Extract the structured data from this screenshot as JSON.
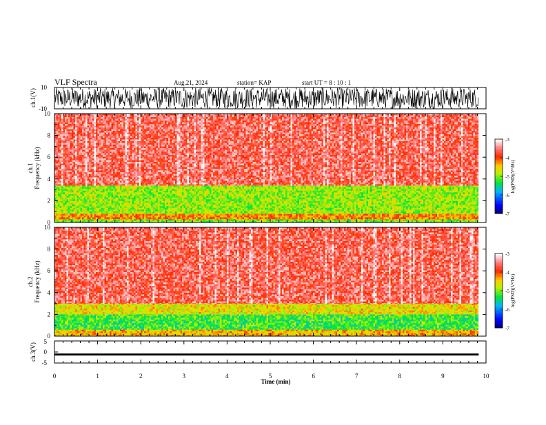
{
  "header": {
    "title": "VLF Spectra",
    "date": "Aug.21, 2024",
    "station": "station= KAP",
    "start": "start  UT =   8 : 10 : 1"
  },
  "chart_data": [
    {
      "type": "line",
      "panel": "ch1-waveform",
      "ylabel": "ch.1(V)",
      "ylim": [
        -10,
        10
      ],
      "y_ticks": [
        "10",
        "-10"
      ],
      "x_range_min": [
        0,
        9.83
      ],
      "description_style": "dense black noise trace, amplitude nearly full scale"
    },
    {
      "type": "heatmap",
      "panel": "ch1-spectrogram",
      "ylabel": "ch.1\nFrequency (kHz)",
      "ylabel_lines": [
        "ch.1",
        "Frequency (kHz)"
      ],
      "ylim": [
        0,
        10
      ],
      "y_ticks": [
        "0",
        "2",
        "4",
        "6",
        "8",
        "10"
      ],
      "colorbar": {
        "label": "log(PSD)(V²/Hz)",
        "ticks": [
          "-3",
          "-4",
          "-5",
          "-6",
          "-7"
        ],
        "range": [
          -7,
          -3
        ]
      },
      "bands": [
        {
          "f_low": 0.0,
          "f_high": 0.3,
          "level": -5.0
        },
        {
          "f_low": 0.3,
          "f_high": 0.8,
          "level": -4.2
        },
        {
          "f_low": 0.8,
          "f_high": 3.4,
          "level": -4.9
        },
        {
          "f_low": 3.4,
          "f_high": 10.0,
          "level": -3.6
        }
      ]
    },
    {
      "type": "heatmap",
      "panel": "ch2-spectrogram",
      "ylabel": "ch.2\nFrequency (kHz)",
      "ylabel_lines": [
        "ch.2",
        "Frequency (kHz)"
      ],
      "ylim": [
        0,
        10
      ],
      "y_ticks": [
        "0",
        "2",
        "4",
        "6",
        "8",
        "10"
      ],
      "colorbar": {
        "label": "log(PSD)(V²/Hz)",
        "ticks": [
          "-3",
          "-4",
          "-5",
          "-6",
          "-7"
        ],
        "range": [
          -7,
          -3
        ]
      },
      "bands": [
        {
          "f_low": 0.0,
          "f_high": 0.6,
          "level": -4.4
        },
        {
          "f_low": 0.6,
          "f_high": 2.0,
          "level": -5.2
        },
        {
          "f_low": 2.0,
          "f_high": 3.0,
          "level": -4.6
        },
        {
          "f_low": 3.0,
          "f_high": 10.0,
          "level": -3.6
        }
      ]
    },
    {
      "type": "line",
      "panel": "ch3-waveform",
      "ylabel": "ch.3(V)",
      "ylim": [
        -5,
        5
      ],
      "y_ticks": [
        "5",
        "0",
        "-5"
      ],
      "x_range_min": [
        0,
        9.83
      ],
      "level_band": [
        -0.7,
        -1.6
      ]
    }
  ],
  "x_axis": {
    "label": "Time (min)",
    "range": [
      0,
      10
    ],
    "ticks": [
      "0",
      "1",
      "2",
      "3",
      "4",
      "5",
      "6",
      "7",
      "8",
      "9",
      "10"
    ]
  }
}
